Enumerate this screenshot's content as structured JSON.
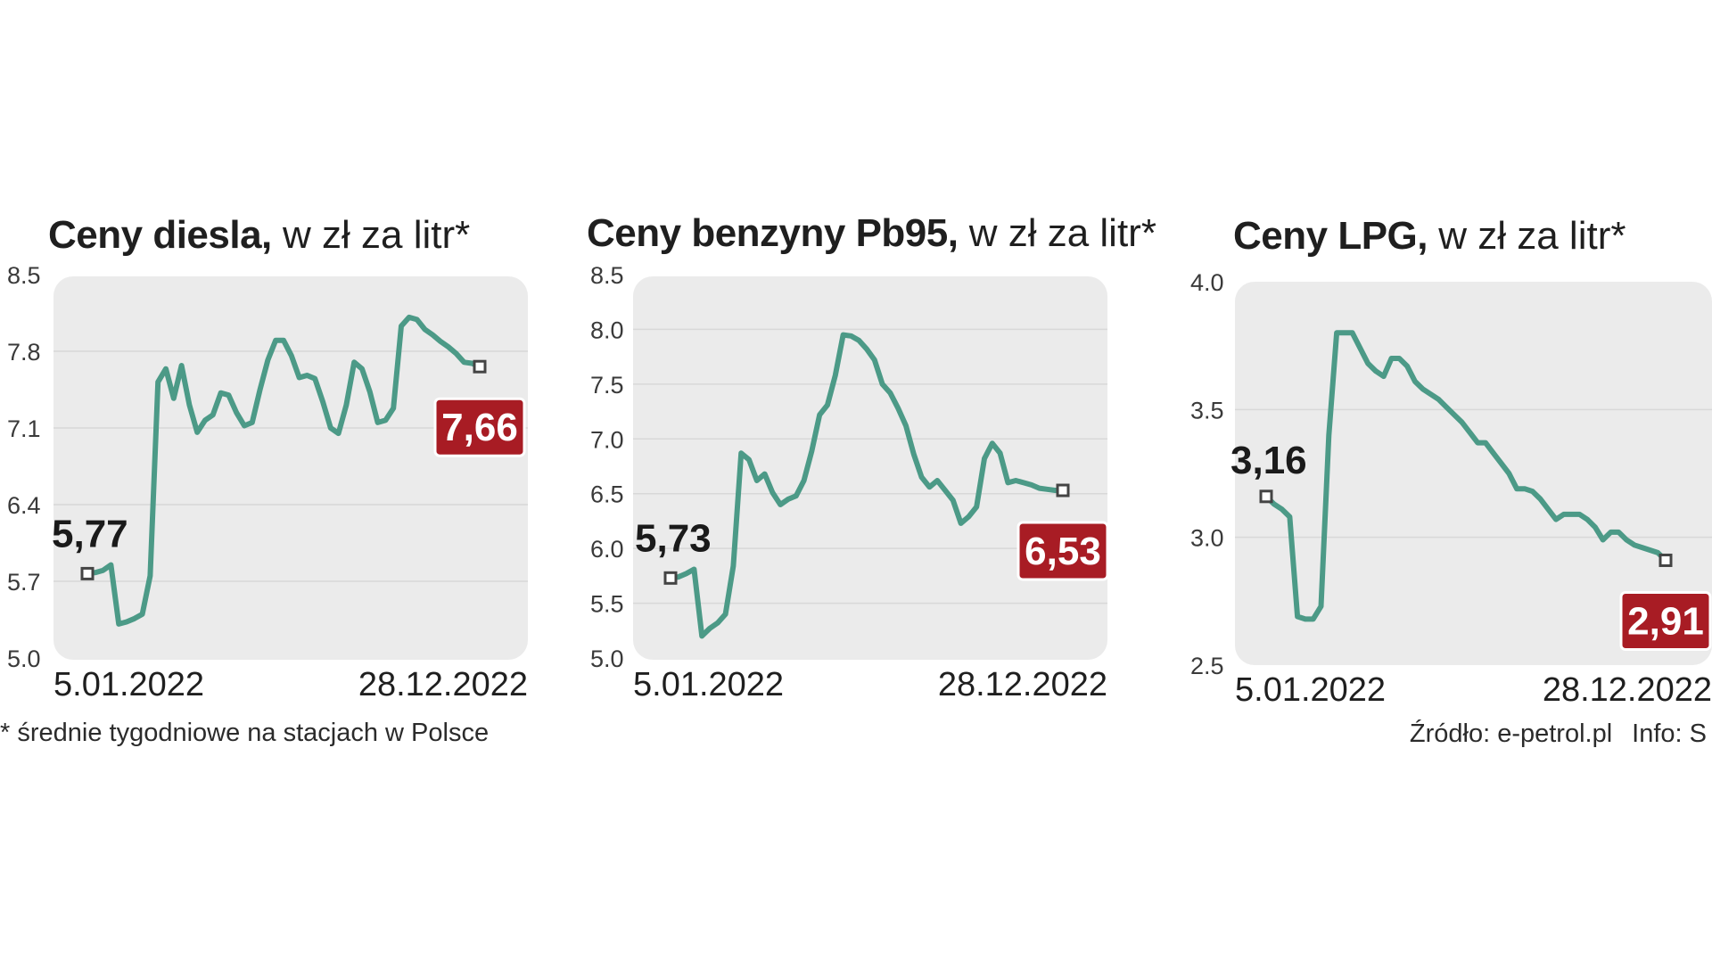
{
  "footnote": "* średnie tygodniowe na stacjach w Polsce",
  "source": "Źródło: e-petrol.pl",
  "info": "Info: S",
  "colors": {
    "line": "#4c9a87",
    "plot_bg": "#ebebeb",
    "grid": "#d8d8d8",
    "end_box": "#a81c24",
    "end_box_border": "#ffffff",
    "marker": "#444444"
  },
  "chart_data": [
    {
      "type": "line",
      "title_bold": "Ceny diesla,",
      "title_rest": " w zł za litr*",
      "ylabel": "zł za litr",
      "yticks": [
        "8.5",
        "7.8",
        "7.1",
        "6.4",
        "5.7",
        "5.0"
      ],
      "ylim": [
        5.0,
        8.5
      ],
      "x_start_label": "5.01.2022",
      "x_end_label": "28.12.2022",
      "start_label": "5,77",
      "end_label": "7,66",
      "series": [
        {
          "name": "diesel",
          "values": [
            5.77,
            5.78,
            5.8,
            5.85,
            5.31,
            5.33,
            5.36,
            5.4,
            5.75,
            7.52,
            7.64,
            7.37,
            7.67,
            7.31,
            7.06,
            7.17,
            7.22,
            7.42,
            7.4,
            7.24,
            7.12,
            7.15,
            7.45,
            7.72,
            7.9,
            7.9,
            7.76,
            7.56,
            7.58,
            7.55,
            7.34,
            7.1,
            7.05,
            7.31,
            7.7,
            7.64,
            7.43,
            7.15,
            7.17,
            7.28,
            8.03,
            8.11,
            8.09,
            8.0,
            7.95,
            7.89,
            7.84,
            7.78,
            7.7,
            7.69,
            7.66
          ]
        }
      ]
    },
    {
      "type": "line",
      "title_bold": "Ceny benzyny Pb95,",
      "title_rest": " w zł za litr*",
      "ylabel": "zł za litr",
      "yticks": [
        "8.5",
        "8.0",
        "7.5",
        "7.0",
        "6.5",
        "6.0",
        "5.5",
        "5.0"
      ],
      "ylim": [
        5.0,
        8.5
      ],
      "x_start_label": "5.01.2022",
      "x_end_label": "28.12.2022",
      "start_label": "5,73",
      "end_label": "6,53",
      "series": [
        {
          "name": "Pb95",
          "values": [
            5.73,
            5.74,
            5.77,
            5.81,
            5.2,
            5.27,
            5.32,
            5.4,
            5.84,
            6.87,
            6.81,
            6.62,
            6.68,
            6.51,
            6.4,
            6.45,
            6.48,
            6.62,
            6.89,
            7.22,
            7.31,
            7.58,
            7.95,
            7.94,
            7.9,
            7.82,
            7.72,
            7.5,
            7.42,
            7.28,
            7.12,
            6.86,
            6.65,
            6.56,
            6.62,
            6.53,
            6.44,
            6.23,
            6.29,
            6.38,
            6.82,
            6.96,
            6.87,
            6.6,
            6.62,
            6.6,
            6.58,
            6.55,
            6.54,
            6.53,
            6.53
          ]
        }
      ]
    },
    {
      "type": "line",
      "title_bold": "Ceny LPG,",
      "title_rest": " w zł za litr*",
      "ylabel": "zł za litr",
      "yticks": [
        "4.0",
        "3.5",
        "3.0",
        "2.5"
      ],
      "ylim": [
        2.5,
        4.0
      ],
      "x_start_label": "5.01.2022",
      "x_end_label": "28.12.2022",
      "start_label": "3,16",
      "end_label": "2,91",
      "series": [
        {
          "name": "LPG",
          "values": [
            3.16,
            3.13,
            3.11,
            3.08,
            2.69,
            2.68,
            2.68,
            2.73,
            3.4,
            3.8,
            3.8,
            3.8,
            3.74,
            3.68,
            3.65,
            3.63,
            3.7,
            3.7,
            3.67,
            3.61,
            3.58,
            3.56,
            3.54,
            3.51,
            3.48,
            3.45,
            3.41,
            3.37,
            3.37,
            3.33,
            3.29,
            3.25,
            3.19,
            3.19,
            3.18,
            3.15,
            3.11,
            3.07,
            3.09,
            3.09,
            3.09,
            3.07,
            3.04,
            2.99,
            3.02,
            3.02,
            2.99,
            2.97,
            2.96,
            2.95,
            2.94,
            2.91
          ]
        }
      ]
    }
  ]
}
